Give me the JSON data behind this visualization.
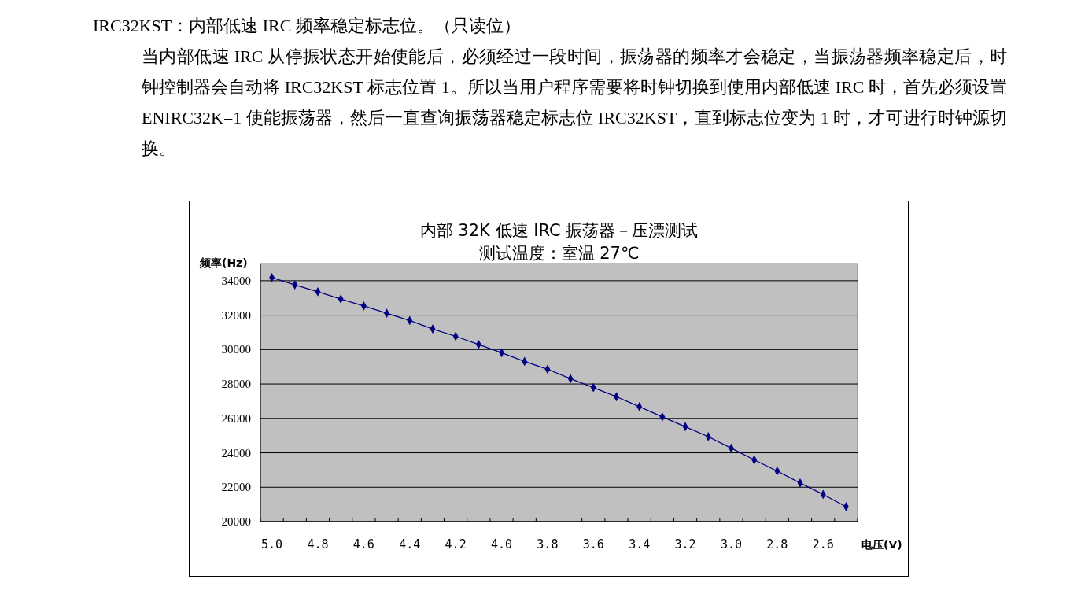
{
  "chart_data": {
    "type": "line",
    "title": "内部 32K 低速 IRC 振荡器－压漂测试",
    "subtitle": "测试温度：室温 27℃",
    "xlabel": "电压(V)",
    "ylabel": "频率(Hz)",
    "annotations": [
      "IRC32KST：内部低速 IRC 频率稳定标志位。（只读位）",
      "当内部低速 IRC 从停振状态开始使能后，必须经过一段时间，振荡器的频率才会稳定，当振荡器频率稳定后，时钟控制器会自动将 IRC32KST 标志位置 1。所以当用户程序需要将时钟切换到使用内部低速 IRC 时，首先必须设置 ENIRC32K=1 使能振荡器，然后一直查询振荡器稳定标志位 IRC32KST，直到标志位变为 1 时，才可进行时钟源切换。"
    ],
    "categories": [
      "5.0",
      null,
      "4.8",
      null,
      "4.6",
      null,
      "4.4",
      null,
      "4.2",
      null,
      "4.0",
      null,
      "3.8",
      null,
      "3.6",
      null,
      "3.4",
      null,
      "3.2",
      null,
      "3.0",
      null,
      "2.8",
      null,
      "2.6",
      null
    ],
    "series": [
      {
        "color": "#000080",
        "values": [
          34180,
          33760,
          33360,
          32940,
          32540,
          32110,
          31690,
          31200,
          30770,
          30300,
          29820,
          29310,
          28860,
          28310,
          27790,
          27260,
          26680,
          26090,
          25520,
          24940,
          24270,
          23590,
          22940,
          22250,
          21580,
          20870
        ]
      }
    ],
    "ylim": [
      20000,
      35000
    ],
    "yticks": [
      20000,
      22000,
      24000,
      26000,
      28000,
      30000,
      32000,
      34000
    ],
    "grid": "y",
    "marker": "diamond"
  }
}
